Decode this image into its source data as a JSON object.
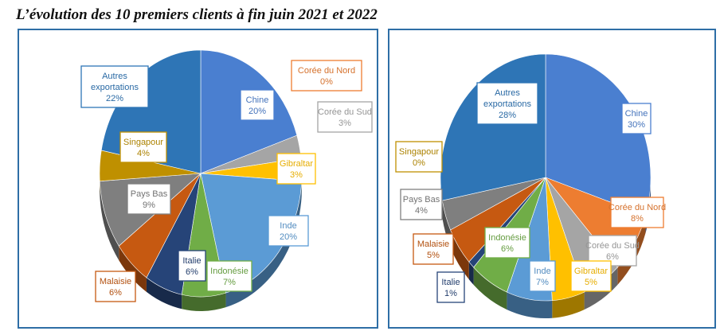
{
  "title": "L’évolution des 10 premiers clients à fin juin 2021 et 2022",
  "chart_data": [
    {
      "type": "pie",
      "slices": [
        {
          "label": "Chine",
          "value": 20,
          "color": "#4a7fd0"
        },
        {
          "label": "Corée du Nord",
          "value": 0,
          "color": "#ed7d31"
        },
        {
          "label": "Corée du Sud",
          "value": 3,
          "color": "#a5a5a5"
        },
        {
          "label": "Gibraltar",
          "value": 3,
          "color": "#ffc000"
        },
        {
          "label": "Inde",
          "value": 20,
          "color": "#5b9bd5"
        },
        {
          "label": "Indonésie",
          "value": 7,
          "color": "#70ad47"
        },
        {
          "label": "Italie",
          "value": 6,
          "color": "#264478"
        },
        {
          "label": "Malaisie",
          "value": 6,
          "color": "#c65911"
        },
        {
          "label": "Pays Bas",
          "value": 9,
          "color": "#7f7f7f"
        },
        {
          "label": "Singapour",
          "value": 4,
          "color": "#bf9000"
        },
        {
          "label": "Autres exportations",
          "value": 22,
          "color": "#2e75b6"
        }
      ]
    },
    {
      "type": "pie",
      "slices": [
        {
          "label": "Chine",
          "value": 30,
          "color": "#4a7fd0"
        },
        {
          "label": "Corée du Nord",
          "value": 8,
          "color": "#ed7d31"
        },
        {
          "label": "Corée du Sud",
          "value": 6,
          "color": "#a5a5a5"
        },
        {
          "label": "Gibraltar",
          "value": 5,
          "color": "#ffc000"
        },
        {
          "label": "Inde",
          "value": 7,
          "color": "#5b9bd5"
        },
        {
          "label": "Indonésie",
          "value": 6,
          "color": "#70ad47"
        },
        {
          "label": "Italie",
          "value": 1,
          "color": "#264478"
        },
        {
          "label": "Malaisie",
          "value": 5,
          "color": "#c65911"
        },
        {
          "label": "Pays Bas",
          "value": 4,
          "color": "#7f7f7f"
        },
        {
          "label": "Singapour",
          "value": 0,
          "color": "#bf9000"
        },
        {
          "label": "Autres exportations",
          "value": 28,
          "color": "#2e75b6"
        }
      ]
    }
  ]
}
